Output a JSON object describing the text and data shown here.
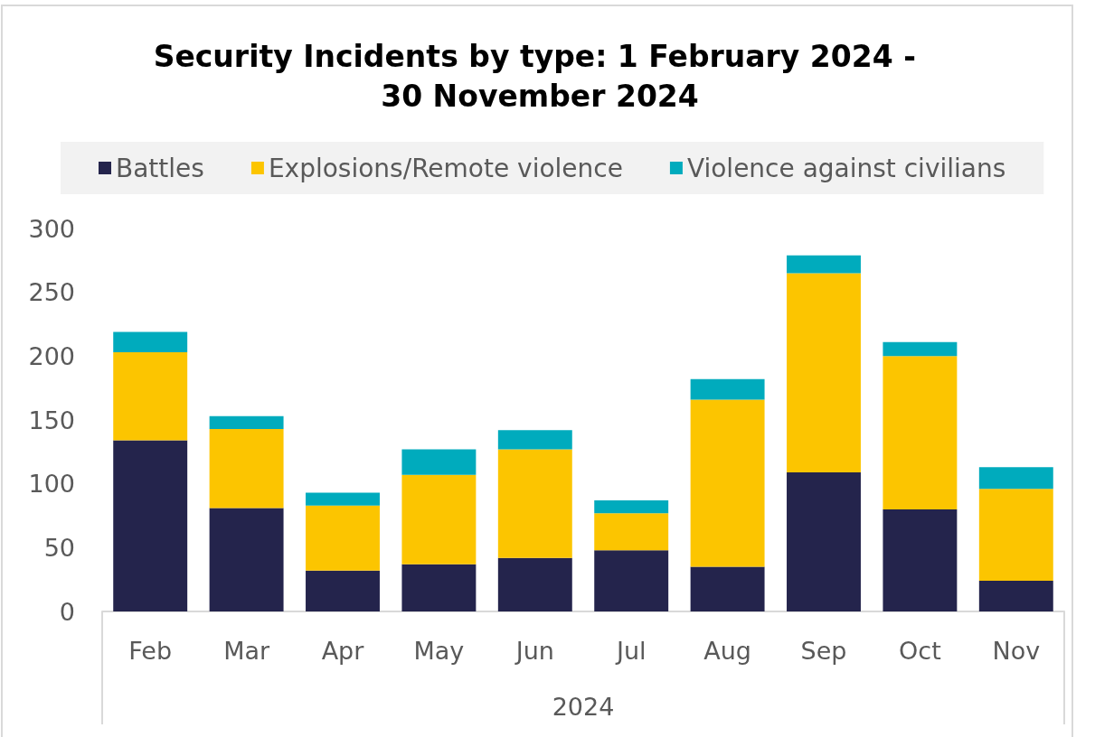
{
  "chart_data": {
    "type": "bar",
    "title": "Security Incidents by type: 1 February 2024 - 30 November 2024",
    "xlabel": "2024",
    "categories": [
      "Feb",
      "Mar",
      "Apr",
      "May",
      "Jun",
      "Jul",
      "Aug",
      "Sep",
      "Oct",
      "Nov"
    ],
    "series": [
      {
        "name": "Battles",
        "color": "#24244c",
        "values": [
          134,
          81,
          32,
          37,
          42,
          48,
          35,
          109,
          80,
          24
        ]
      },
      {
        "name": "Explosions/Remote violence",
        "color": "#fcc500",
        "values": [
          69,
          62,
          51,
          70,
          85,
          29,
          131,
          156,
          120,
          72
        ]
      },
      {
        "name": "Violence against civilians",
        "color": "#00abbd",
        "values": [
          16,
          10,
          10,
          20,
          15,
          10,
          16,
          14,
          11,
          17
        ]
      }
    ],
    "stacked": true,
    "ylim": [
      0,
      300
    ],
    "yticks": [
      0,
      50,
      100,
      150,
      200,
      250,
      300
    ],
    "legend": "top"
  }
}
